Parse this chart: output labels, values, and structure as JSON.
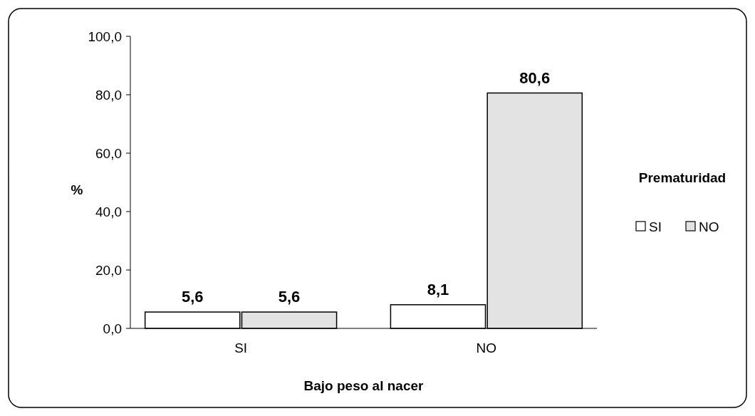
{
  "chart_data": {
    "type": "bar",
    "xlabel": "Bajo peso al nacer",
    "ylabel": "%",
    "legend_title": "Prematuridad",
    "categories": [
      "SI",
      "NO"
    ],
    "series": [
      {
        "name": "SI",
        "color": "#ffffff",
        "values": [
          5.6,
          8.1
        ],
        "value_labels": [
          "5,6",
          "8,1"
        ]
      },
      {
        "name": "NO",
        "color": "#e3e3e3",
        "values": [
          5.6,
          80.6
        ],
        "value_labels": [
          "5,6",
          "80,6"
        ]
      }
    ],
    "ylim": [
      0,
      100
    ],
    "yticks": [
      {
        "value": 0,
        "label": "0,0"
      },
      {
        "value": 20,
        "label": "20,0"
      },
      {
        "value": 40,
        "label": "40,0"
      },
      {
        "value": 60,
        "label": "60,0"
      },
      {
        "value": 80,
        "label": "80,0"
      },
      {
        "value": 100,
        "label": "100,0"
      }
    ],
    "legend": "right",
    "grid": false
  }
}
